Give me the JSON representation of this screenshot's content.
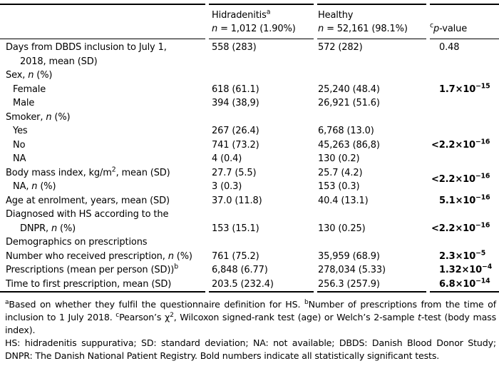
{
  "page": {
    "background": "#ffffff",
    "text_color": "#000000",
    "rule_color": "#000000"
  },
  "table": {
    "header": {
      "group1_name_html": "Hidradenitis<sup>a</sup>",
      "group1_n_html": "<i>n</i> = 1,012 (1.90%)",
      "group2_name_html": "Healthy",
      "group2_n_html": "<i>n</i> = 52,161 (98.1%)",
      "pvalue_html": "<sup>c</sup><i>p</i>-value"
    },
    "rows": [
      {
        "label_html": "Days from DBDS inclusion to July 1,<br>2018, mean (SD)",
        "hid": "558 (283)",
        "healthy": "572 (282)",
        "p_html": "0.48"
      },
      {
        "label_html": "Sex, <i>n</i> (%)"
      },
      {
        "label_html": "Female",
        "hid": "618 (61.1)",
        "healthy": "25,240 (48.4)",
        "p_html": "1.7×10<sup>−15</sup>"
      },
      {
        "label_html": "Male",
        "hid": "394 (38,9)",
        "healthy": "26,921 (51.6)"
      },
      {
        "label_html": "Smoker, <i>n</i> (%)"
      },
      {
        "label_html": "Yes",
        "hid": "267 (26.4)",
        "healthy": "6,768 (13.0)",
        "p_html": "&lt;2.2×10<sup>−16</sup>"
      },
      {
        "label_html": "No",
        "hid": "741 (73.2)",
        "healthy": "45,263 (86,8)"
      },
      {
        "label_html": "NA",
        "hid": "4 (0.4)",
        "healthy": "130 (0.2)"
      },
      {
        "label_html": "Body mass index, kg/m<sup>2</sup>, mean (SD)",
        "hid": "27.7 (5.5)",
        "healthy": "25.7 (4.2)",
        "p_html": "&lt;2.2×10<sup>−16</sup>"
      },
      {
        "label_html": "NA, <i>n</i> (%)",
        "hid": "3 (0.3)",
        "healthy": "153 (0.3)"
      },
      {
        "label_html": "Age at enrolment, years, mean (SD)",
        "hid": "37.0 (11.8)",
        "healthy": "40.4 (13.1)",
        "p_html": "5.1×10<sup>−16</sup>"
      },
      {
        "label_html": "Diagnosed with HS according to the<br>DNPR, <i>n</i> (%)",
        "hid": "153 (15.1)",
        "healthy": "130 (0.25)",
        "p_html": "&lt;2.2×10<sup>−16</sup>"
      },
      {
        "label_html": "Demographics on prescriptions"
      },
      {
        "label_html": "Number who received prescription, <i>n</i> (%)",
        "hid": "761 (75.2)",
        "healthy": "35,959 (68.9)",
        "p_html": "2.3×10<sup>−5</sup>"
      },
      {
        "label_html": "Prescriptions (mean per person (SD))<sup>b</sup>",
        "hid": "6,848 (6.77)",
        "healthy": "278,034 (5.33)",
        "p_html": "1.32×10<sup>−4</sup>"
      },
      {
        "label_html": "Time to first prescription, mean (SD)",
        "hid": "203.5 (232.4)",
        "healthy": "256.3 (257.9)",
        "p_html": "6.8×10<sup>−14</sup>"
      }
    ]
  },
  "footnotes": {
    "para1_html": "<sup>a</sup>Based on whether they fulfil the questionnaire definition for HS. <sup>b</sup>Number of prescriptions from the time of inclusion to 1 July 2018. <sup>c</sup>Pearson’s χ<sup>2</sup>, Wilcoxon signed-rank test (age) or Welch’s 2-sample <i>t</i>-test (body mass index).",
    "para2_html": "HS: hidradenitis suppurativa; SD: standard deviation; NA: not available; DBDS: Danish Blood Donor Study; DNPR: The Danish National Patient Registry. Bold numbers indicate all statistically significant tests."
  }
}
